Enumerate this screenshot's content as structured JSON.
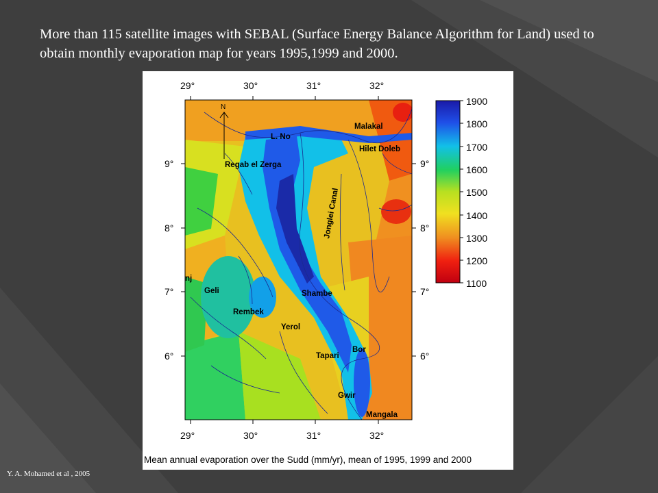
{
  "slide": {
    "title": "More than 115 satellite images  with SEBAL (Surface Energy Balance Algorithm for Land) used to obtain monthly evaporation map for years 1995,1999 and 2000.",
    "credit": "Y. A. Mohamed et al , 2005"
  },
  "figure": {
    "caption": "Mean annual evaporation over the Sudd (mm/yr), mean of 1995, 1999 and 2000",
    "lon_labels": [
      "29°",
      "30°",
      "31°",
      "32°"
    ],
    "lat_labels": [
      "9°",
      "8°",
      "7°",
      "6°"
    ],
    "north_label": "N",
    "legend": {
      "values": [
        "1900",
        "1800",
        "1700",
        "1600",
        "1500",
        "1400",
        "1300",
        "1200",
        "1100"
      ],
      "colors": [
        "#1a1aa8",
        "#1f4fe8",
        "#12c0e8",
        "#20d060",
        "#b8e020",
        "#f0e020",
        "#f09020",
        "#f02010",
        "#c00010"
      ]
    },
    "places": {
      "malakal": "Malakal",
      "l_no": "L. No",
      "hilet_doleb": "Hilet Doleb",
      "regab": "Regab el Zerga",
      "jonglei": "Jonglei Canal",
      "geli": "Geli",
      "shambe": "Shambe",
      "rembek": "Rembek",
      "yerol": "Yerol",
      "bor": "Bor",
      "tapari": "Tapari",
      "gwir": "Gwir",
      "mangala": "Mangala",
      "edge_label": "nj"
    }
  }
}
